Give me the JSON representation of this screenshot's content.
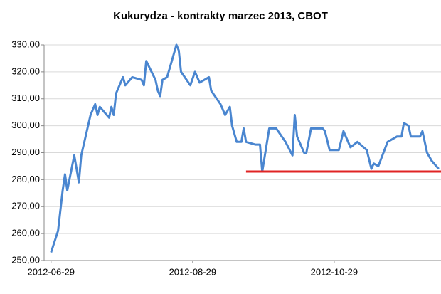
{
  "chart_data": {
    "type": "line",
    "title": "Kukurydza - kontrakty marzec 2013, CBOT",
    "x": [
      "2012-06-29",
      "2012-07-02",
      "2012-07-04",
      "2012-07-05",
      "2012-07-06",
      "2012-07-09",
      "2012-07-10",
      "2012-07-11",
      "2012-07-12",
      "2012-07-16",
      "2012-07-18",
      "2012-07-19",
      "2012-07-20",
      "2012-07-24",
      "2012-07-25",
      "2012-07-26",
      "2012-07-27",
      "2012-07-30",
      "2012-07-31",
      "2012-08-03",
      "2012-08-07",
      "2012-08-08",
      "2012-08-09",
      "2012-08-13",
      "2012-08-14",
      "2012-08-15",
      "2012-08-16",
      "2012-08-18",
      "2012-08-20",
      "2012-08-22",
      "2012-08-23",
      "2012-08-24",
      "2012-08-28",
      "2012-08-30",
      "2012-09-01",
      "2012-09-05",
      "2012-09-06",
      "2012-09-10",
      "2012-09-12",
      "2012-09-14",
      "2012-09-15",
      "2012-09-17",
      "2012-09-19",
      "2012-09-20",
      "2012-09-21",
      "2012-09-25",
      "2012-09-27",
      "2012-09-28",
      "2012-10-01",
      "2012-10-04",
      "2012-10-08",
      "2012-10-11",
      "2012-10-12",
      "2012-10-13",
      "2012-10-16",
      "2012-10-17",
      "2012-10-19",
      "2012-10-24",
      "2012-10-25",
      "2012-10-27",
      "2012-10-31",
      "2012-11-02",
      "2012-11-05",
      "2012-11-08",
      "2012-11-12",
      "2012-11-14",
      "2012-11-15",
      "2012-11-17",
      "2012-11-21",
      "2012-11-25",
      "2012-11-27",
      "2012-11-28",
      "2012-11-30",
      "2012-12-01",
      "2012-12-05",
      "2012-12-06",
      "2012-12-08",
      "2012-12-10",
      "2012-12-13"
    ],
    "series": [
      {
        "name": "Kukurydza",
        "color": "#4a86d0",
        "values": [
          253,
          261,
          276,
          282,
          276,
          289,
          284,
          279,
          289,
          304,
          308,
          304,
          307,
          303,
          307,
          304,
          312,
          318,
          315,
          318,
          317,
          315,
          324,
          317,
          313,
          311,
          317,
          318,
          324,
          330,
          328,
          320,
          315,
          320,
          316,
          318,
          313,
          308,
          304,
          307,
          300,
          294,
          294,
          299,
          294,
          293,
          293,
          283,
          299,
          299,
          294,
          289,
          304,
          296,
          290,
          290,
          299,
          299,
          298,
          291,
          291,
          298,
          292,
          294,
          291,
          284,
          286,
          285,
          294,
          296,
          296,
          301,
          300,
          296,
          296,
          298,
          290,
          287,
          284
        ]
      }
    ],
    "xlim": [
      "2012-06-26",
      "2012-12-14"
    ],
    "xticks": [
      "2012-06-29",
      "2012-08-29",
      "2012-10-29"
    ],
    "ylim": [
      250,
      330
    ],
    "yticks": [
      {
        "value": 250,
        "label": "250,00"
      },
      {
        "value": 260,
        "label": "260,00"
      },
      {
        "value": 270,
        "label": "270,00"
      },
      {
        "value": 280,
        "label": "280,00"
      },
      {
        "value": 290,
        "label": "290,00"
      },
      {
        "value": 300,
        "label": "300,00"
      },
      {
        "value": 310,
        "label": "310,00"
      },
      {
        "value": 320,
        "label": "320,00"
      },
      {
        "value": 330,
        "label": "330,00"
      }
    ],
    "grid": true,
    "reference_line": {
      "value": 283,
      "color": "#e02424",
      "x": [
        "2012-09-21",
        "2012-12-14"
      ]
    }
  }
}
